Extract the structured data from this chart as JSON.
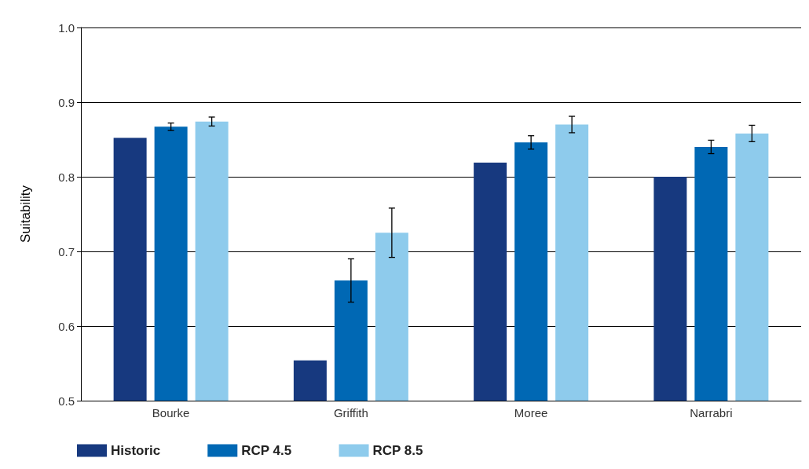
{
  "chart_data": {
    "type": "bar",
    "ylabel": "Suitability",
    "categories": [
      "Bourke",
      "Griffith",
      "Moree",
      "Narrabri"
    ],
    "series": [
      {
        "name": "Historic",
        "color": "#17397f",
        "values": [
          0.852,
          0.554,
          0.819,
          0.8
        ]
      },
      {
        "name": "RCP 4.5",
        "color": "#0068b4",
        "values": [
          0.867,
          0.661,
          0.846,
          0.84
        ],
        "errors": [
          0.005,
          0.029,
          0.009,
          0.009
        ]
      },
      {
        "name": "RCP 8.5",
        "color": "#8ecbec",
        "values": [
          0.874,
          0.725,
          0.87,
          0.858
        ],
        "errors": [
          0.006,
          0.033,
          0.011,
          0.011
        ]
      }
    ],
    "ylim": [
      0.5,
      1.0
    ],
    "yticks": [
      {
        "value": 0.5,
        "label": "0.5"
      },
      {
        "value": 0.6,
        "label": "0.6"
      },
      {
        "value": 0.7,
        "label": "0.7"
      },
      {
        "value": 0.8,
        "label": "0.8"
      },
      {
        "value": 0.9,
        "label": "0.9"
      },
      {
        "value": 1,
        "label": "1.0"
      }
    ],
    "grid": "y",
    "legend": "bottom left"
  }
}
